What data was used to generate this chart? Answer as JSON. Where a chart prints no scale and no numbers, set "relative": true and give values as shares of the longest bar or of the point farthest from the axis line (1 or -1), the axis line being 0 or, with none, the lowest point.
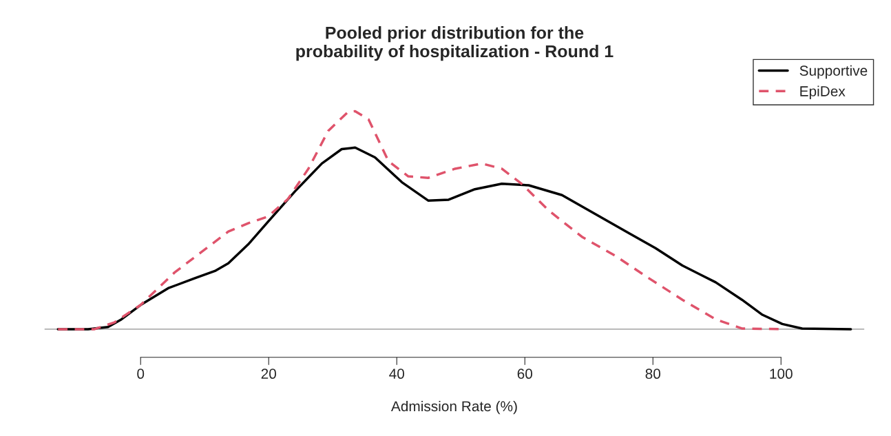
{
  "chart_data": {
    "type": "line",
    "title": "Pooled prior distribution for the\nprobability of hospitalization - Round 1",
    "xlabel": "Admission Rate (%)",
    "relative": true,
    "xlim": [
      -15,
      113
    ],
    "xticks": [
      0,
      20,
      40,
      60,
      80,
      100
    ],
    "tick_labels": "x",
    "grid": false,
    "legend": "top right",
    "ref_lines": [
      {
        "axis": "y",
        "value": 0,
        "color": "#bebebe"
      }
    ],
    "series": [
      {
        "name": "Supportive",
        "color": "#000000",
        "line_style": "solid",
        "x": [
          -12.9,
          -8.2,
          -5.1,
          -3.0,
          0,
          4.3,
          8.4,
          11.6,
          13.7,
          16.8,
          19.9,
          24.1,
          28.3,
          31.4,
          33.5,
          36.6,
          40.8,
          44.9,
          48.1,
          52.2,
          56.4,
          60.6,
          65.8,
          71.0,
          76.2,
          80.4,
          84.6,
          89.8,
          93.9,
          97.1,
          100.2,
          103.3,
          110.9
        ],
        "values": [
          0,
          0,
          0.01,
          0.045,
          0.111,
          0.188,
          0.233,
          0.267,
          0.302,
          0.389,
          0.493,
          0.632,
          0.76,
          0.826,
          0.833,
          0.788,
          0.674,
          0.59,
          0.594,
          0.642,
          0.667,
          0.66,
          0.615,
          0.528,
          0.441,
          0.372,
          0.292,
          0.215,
          0.135,
          0.066,
          0.024,
          0.003,
          0
        ]
      },
      {
        "name": "EpiDex",
        "color": "#df536b",
        "line_style": "dashed",
        "x": [
          -12.9,
          -7.2,
          -4.1,
          0,
          5.3,
          9.5,
          13.7,
          16.8,
          19.9,
          23.0,
          26.2,
          29.3,
          32.4,
          33.5,
          35.6,
          38.7,
          41.8,
          44.9,
          49.1,
          53.3,
          56.4,
          59.5,
          63.7,
          68.9,
          74.1,
          79.4,
          84.6,
          89.8,
          93.9,
          100.2
        ],
        "values": [
          0,
          0,
          0.031,
          0.111,
          0.26,
          0.354,
          0.448,
          0.486,
          0.517,
          0.597,
          0.736,
          0.91,
          0.997,
          1,
          0.962,
          0.771,
          0.701,
          0.694,
          0.736,
          0.76,
          0.736,
          0.667,
          0.545,
          0.424,
          0.337,
          0.233,
          0.135,
          0.045,
          0.003,
          0
        ]
      }
    ]
  }
}
